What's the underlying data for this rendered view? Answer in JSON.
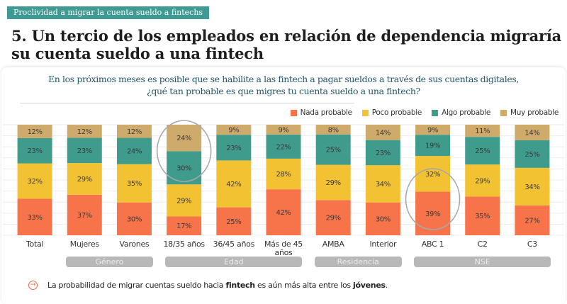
{
  "tag_label": "Proclividad a migrar la cuenta sueldo a fintechs",
  "headline": "5. Un tercio de los empleados en relación de dependencia migraría su cuenta sueldo a una fintech",
  "question_line1": "En los próximos meses es posible que se habilite a las fintech a pagar sueldos a través de sus cuentas digitales,",
  "question_line2": "¿qué tan probable es que migres tu cuenta sueldo a una fintech?",
  "colors": {
    "nada": "#f7744b",
    "poco": "#f2c232",
    "algo": "#3f9b8b",
    "muy": "#cfab6b",
    "accent": "#ef6b45",
    "pill": "#b8b8b8"
  },
  "chart_data": {
    "type": "bar",
    "stacked": true,
    "title": "En los próximos meses es posible que se habilite a las fintech a pagar sueldos a través de sus cuentas digitales, ¿qué tan probable es que migres tu cuenta sueldo a una fintech?",
    "xlabel": "",
    "ylabel": "",
    "ylim": [
      0,
      100
    ],
    "unit": "%",
    "grid": true,
    "legend_position": "top-right",
    "categories": [
      "Total",
      "Mujeres",
      "Varones",
      "18/35 años",
      "36/45 años",
      "Más de 45 años",
      "AMBA",
      "Interior",
      "ABC 1",
      "C2",
      "C3"
    ],
    "series": [
      {
        "name": "Nada probable",
        "key": "nada",
        "values": [
          33,
          37,
          30,
          17,
          25,
          42,
          29,
          30,
          39,
          35,
          27
        ]
      },
      {
        "name": "Poco probable",
        "key": "poco",
        "values": [
          32,
          29,
          35,
          29,
          42,
          28,
          29,
          34,
          32,
          29,
          34
        ]
      },
      {
        "name": "Algo probable",
        "key": "algo",
        "values": [
          23,
          23,
          24,
          30,
          23,
          22,
          25,
          23,
          19,
          25,
          25
        ]
      },
      {
        "name": "Muy probable",
        "key": "muy",
        "values": [
          12,
          12,
          12,
          24,
          9,
          9,
          8,
          14,
          9,
          11,
          14
        ]
      }
    ],
    "groups": [
      {
        "label": "Género",
        "categories": [
          "Mujeres",
          "Varones"
        ]
      },
      {
        "label": "Edad",
        "categories": [
          "18/35 años",
          "36/45 años",
          "Más de 45 años"
        ]
      },
      {
        "label": "Residencia",
        "categories": [
          "AMBA",
          "Interior"
        ]
      },
      {
        "label": "NSE",
        "categories": [
          "ABC 1",
          "C2",
          "C3"
        ]
      }
    ],
    "highlights": [
      {
        "category": "18/35 años",
        "series": [
          "Algo probable",
          "Muy probable"
        ]
      },
      {
        "category": "ABC 1",
        "series": [
          "Nada probable",
          "Poco probable"
        ]
      }
    ]
  },
  "note": {
    "icon": "arrow-right-circle-icon",
    "text_before": "La probabilidad de migrar cuentas sueldo hacia ",
    "bold1": "fintech",
    "text_middle": " es aún más alta entre los ",
    "bold2": "jóvenes",
    "text_after": "."
  }
}
